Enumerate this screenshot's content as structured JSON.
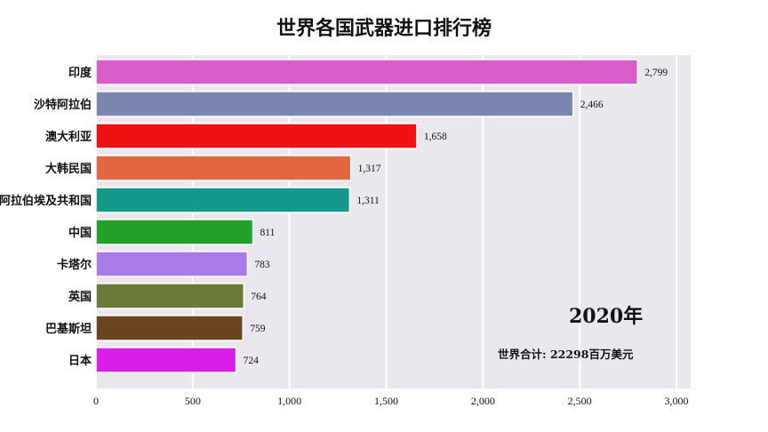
{
  "chart_data": {
    "type": "bar",
    "orientation": "horizontal",
    "title": "世界各国武器进口排行榜",
    "categories": [
      "印度",
      "沙特阿拉伯",
      "澳大利亚",
      "大韩民国",
      "阿拉伯埃及共和国",
      "中国",
      "卡塔尔",
      "英国",
      "巴基斯坦",
      "日本"
    ],
    "values": [
      2799,
      2466,
      1658,
      1317,
      1311,
      811,
      783,
      764,
      759,
      724
    ],
    "value_labels": [
      "2,799",
      "2,466",
      "1,658",
      "1,317",
      "1,311",
      "811",
      "783",
      "764",
      "759",
      "724"
    ],
    "colors": [
      "#d85dc8",
      "#7a86b0",
      "#f01212",
      "#e0673f",
      "#14998a",
      "#21a128",
      "#a97be9",
      "#6a7a3a",
      "#6c4520",
      "#d91ee9"
    ],
    "xlim": [
      0,
      3000
    ],
    "xticks": [
      0,
      500,
      1000,
      1500,
      2000,
      2500,
      3000
    ],
    "xtick_labels": [
      "0",
      "500",
      "1,000",
      "1,500",
      "2,000",
      "2,500",
      "3,000"
    ],
    "grid": true,
    "year_label": "2020年",
    "total_label": "世界合计: 22298百万美元"
  }
}
